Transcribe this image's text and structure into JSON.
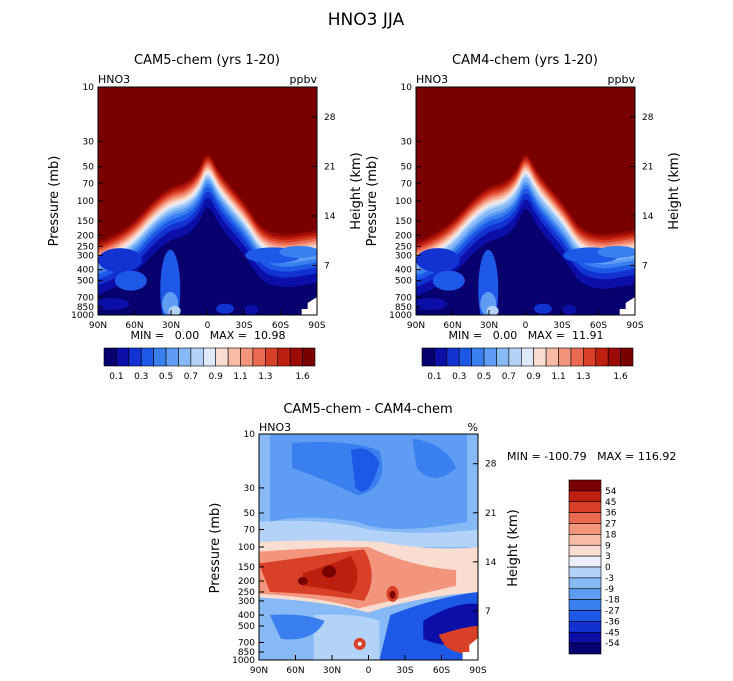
{
  "figure_title": "HNO3 JJA",
  "colors": {
    "seq_palette": [
      "#08006e",
      "#0b0fa8",
      "#1233d1",
      "#1e58e6",
      "#3a7ff0",
      "#5f9df4",
      "#86b9f6",
      "#b3d2f8",
      "#dfe9fa",
      "#f8ddd0",
      "#f8bca6",
      "#f3957d",
      "#ea6b52",
      "#d84128",
      "#bd200f",
      "#9b0a05",
      "#7a0000"
    ],
    "div_palette": [
      "#08006e",
      "#0b0fa8",
      "#1233d1",
      "#1e58e6",
      "#3a7ff0",
      "#5f9df4",
      "#86b9f6",
      "#b3d2f8",
      "#ecf0fb",
      "#f8ddd0",
      "#f8bca6",
      "#f3957d",
      "#ea6b52",
      "#d84128",
      "#bd200f",
      "#7a0000"
    ]
  },
  "chart_data": [
    {
      "type": "heatmap",
      "title": "CAM5-chem (yrs 1-20)",
      "variable": "HNO3",
      "units": "ppbv",
      "ylabel_left": "Pressure (mb)",
      "ylabel_right": "Height (km)",
      "x_ticks": [
        "90N",
        "60N",
        "30N",
        "0",
        "30S",
        "60S",
        "90S"
      ],
      "y_ticks_pressure": [
        "10",
        "30",
        "50",
        "70",
        "100",
        "150",
        "200",
        "250",
        "300",
        "400",
        "500",
        "700",
        "850",
        "1000"
      ],
      "y_ticks_height": [
        "28",
        "21",
        "14",
        "7"
      ],
      "stats": "MIN =   0.00   MAX =  10.98",
      "colorbar_labels": [
        "0.1",
        "0.3",
        "0.5",
        "0.7",
        "0.9",
        "1.1",
        "1.3",
        "1.6"
      ],
      "colorbar_levels": [
        0.1,
        0.2,
        0.3,
        0.4,
        0.5,
        0.6,
        0.7,
        0.8,
        0.9,
        1.0,
        1.1,
        1.2,
        1.3,
        1.4,
        1.5,
        1.6
      ],
      "min": 0.0,
      "max": 10.98
    },
    {
      "type": "heatmap",
      "title": "CAM4-chem (yrs 1-20)",
      "variable": "HNO3",
      "units": "ppbv",
      "ylabel_left": "Pressure (mb)",
      "ylabel_right": "Height (km)",
      "x_ticks": [
        "90N",
        "60N",
        "30N",
        "0",
        "30S",
        "60S",
        "90S"
      ],
      "y_ticks_pressure": [
        "10",
        "30",
        "50",
        "70",
        "100",
        "150",
        "200",
        "250",
        "300",
        "400",
        "500",
        "700",
        "850",
        "1000"
      ],
      "y_ticks_height": [
        "28",
        "21",
        "14",
        "7"
      ],
      "stats": "MIN =   0.00   MAX =  11.91",
      "colorbar_labels": [
        "0.1",
        "0.3",
        "0.5",
        "0.7",
        "0.9",
        "1.1",
        "1.3",
        "1.6"
      ],
      "colorbar_levels": [
        0.1,
        0.2,
        0.3,
        0.4,
        0.5,
        0.6,
        0.7,
        0.8,
        0.9,
        1.0,
        1.1,
        1.2,
        1.3,
        1.4,
        1.5,
        1.6
      ],
      "min": 0.0,
      "max": 11.91
    },
    {
      "type": "heatmap",
      "title": "CAM5-chem - CAM4-chem",
      "variable": "HNO3",
      "units": "%",
      "ylabel_left": "Pressure (mb)",
      "ylabel_right": "Height (km)",
      "x_ticks": [
        "90N",
        "60N",
        "30N",
        "0",
        "30S",
        "60S",
        "90S"
      ],
      "y_ticks_pressure": [
        "10",
        "30",
        "50",
        "70",
        "100",
        "150",
        "200",
        "250",
        "300",
        "400",
        "500",
        "700",
        "850",
        "1000"
      ],
      "y_ticks_height": [
        "28",
        "21",
        "14",
        "7"
      ],
      "stats": "MIN = -100.79   MAX = 116.92",
      "colorbar_labels": [
        "54",
        "45",
        "36",
        "27",
        "18",
        "9",
        "3",
        "0",
        "-3",
        "-9",
        "-18",
        "-27",
        "-36",
        "-45",
        "-54"
      ],
      "colorbar_levels": [
        -54,
        -45,
        -36,
        -27,
        -18,
        -9,
        -3,
        0,
        3,
        9,
        18,
        27,
        36,
        45,
        54
      ],
      "min": -100.79,
      "max": 116.92
    }
  ]
}
